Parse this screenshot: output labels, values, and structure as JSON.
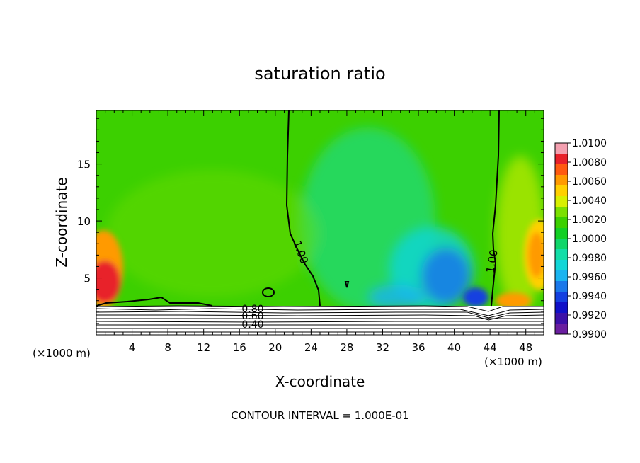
{
  "chart_data": {
    "type": "heatmap",
    "title": "saturation ratio",
    "xlabel": "X-coordinate",
    "ylabel": "Z-coordinate",
    "x_unit_left": "(×1000 m)",
    "x_unit_right": "(×1000 m)",
    "footer": "CONTOUR INTERVAL = 1.000E-01",
    "xlim": [
      0,
      50
    ],
    "ylim": [
      0,
      19.7
    ],
    "x_ticks": [
      4,
      8,
      12,
      16,
      20,
      24,
      28,
      32,
      36,
      40,
      44,
      48
    ],
    "y_ticks": [
      5,
      10,
      15
    ],
    "colorbar": {
      "levels": [
        "1.0100",
        "1.0080",
        "1.0060",
        "1.0040",
        "1.0020",
        "1.0000",
        "0.9980",
        "0.9960",
        "0.9940",
        "0.9920",
        "0.9900"
      ],
      "colors": [
        "#f4a0b0",
        "#e8202a",
        "#ff5a10",
        "#ff9a00",
        "#ffd000",
        "#d8f000",
        "#7ce000",
        "#3cd000",
        "#12d024",
        "#10d66a",
        "#12dea8",
        "#12d6d8",
        "#1ab4f0",
        "#1a78ea",
        "#1440e0",
        "#1010c8",
        "#3c10a8",
        "#6a1ea0"
      ]
    },
    "contour_labels": [
      {
        "text": "1.00",
        "x": 22.8,
        "z": 7.2
      },
      {
        "text": "1.00",
        "x": 44.2,
        "z": 6.3
      },
      {
        "text": "0.80",
        "x": 17.1,
        "z": 2.2
      },
      {
        "text": "0.60",
        "x": 17.1,
        "z": 1.6
      },
      {
        "text": "0.40",
        "x": 17.1,
        "z": 0.8
      }
    ],
    "regions": [
      {
        "name": "upper domain near saturation",
        "value_range": [
          1.0,
          1.002
        ]
      },
      {
        "name": "slightly subsaturated band x 28-44 km",
        "value_range": [
          0.993,
          0.999
        ]
      },
      {
        "name": "supersaturated edges x 0-3 km and 45-50 km",
        "value_range": [
          1.002,
          1.008
        ]
      },
      {
        "name": "dry layer below z 2.7 km",
        "value_range": [
          0.0,
          0.9
        ]
      }
    ]
  }
}
